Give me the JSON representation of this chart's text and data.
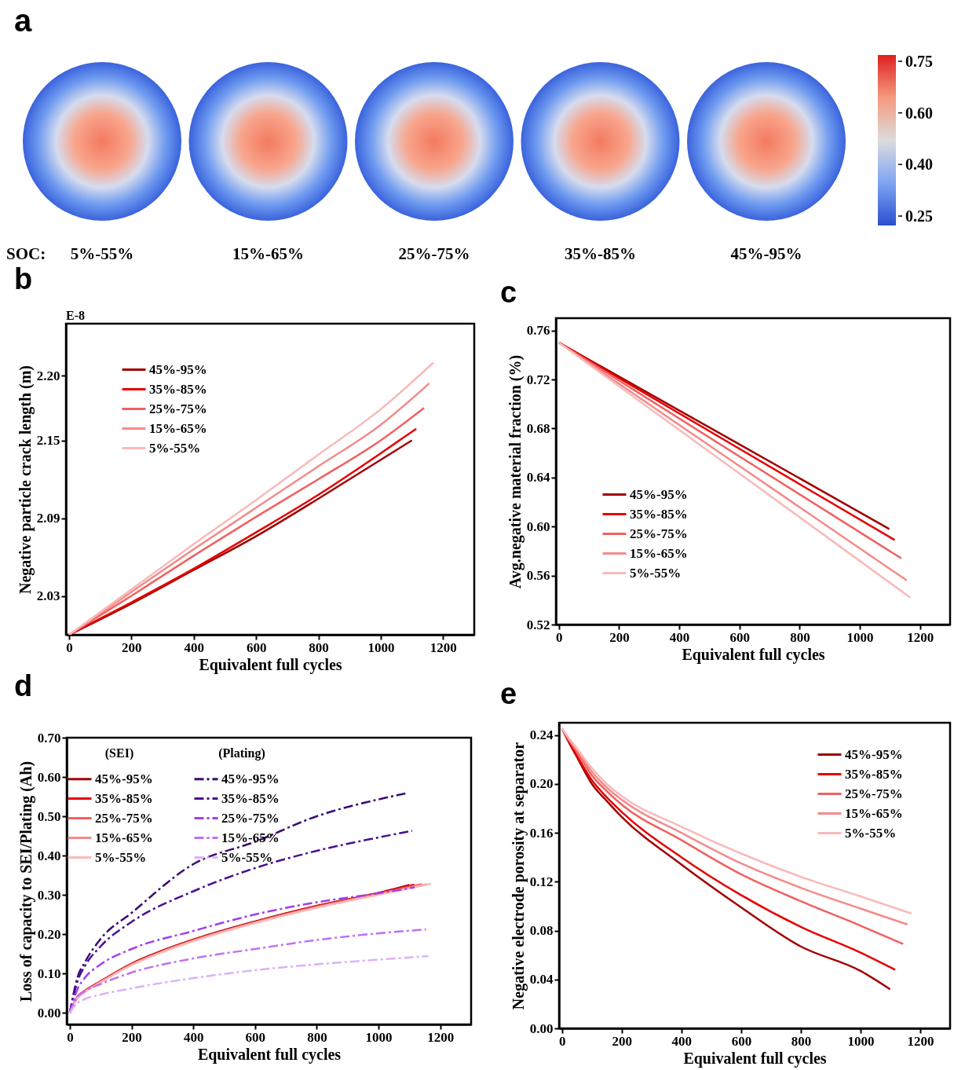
{
  "chart_data": [
    {
      "type": "other",
      "title": "a",
      "xlabel": "SOC:",
      "categories": [
        "5%-55%",
        "15%-65%",
        "25%-75%",
        "35%-85%",
        "45%-95%"
      ],
      "annotations": [
        "0.75",
        "0.60",
        "0.40",
        "0.25"
      ]
    },
    {
      "type": "line",
      "title": "b",
      "xlabel": "Equivalent full cycles",
      "ylabel": "Negative particle crack length (m)",
      "annotations": [
        "E-8"
      ],
      "xlim": [
        -10,
        1300
      ],
      "ylim": [
        2.0,
        2.24
      ],
      "xticks": [
        0,
        200,
        400,
        600,
        800,
        1000,
        1200
      ],
      "yticks": [
        2.03,
        2.09,
        2.15,
        {
          "value": 2.2,
          "label": "2.20"
        }
      ],
      "legend": "top left",
      "series": [
        {
          "name": "45%-95%",
          "color": "#a00000",
          "x": [
            0,
            200,
            400,
            600,
            800,
            1000,
            1100
          ],
          "values": [
            2.0,
            2.024,
            2.05,
            2.076,
            2.105,
            2.135,
            2.15
          ]
        },
        {
          "name": "35%-85%",
          "color": "#e60000",
          "x": [
            0,
            200,
            400,
            600,
            800,
            1000,
            1114
          ],
          "values": [
            2.0,
            2.025,
            2.051,
            2.079,
            2.108,
            2.14,
            2.159
          ]
        },
        {
          "name": "25%-75%",
          "color": "#f26060",
          "x": [
            0,
            200,
            400,
            600,
            800,
            1000,
            1139
          ],
          "values": [
            2.0,
            2.03,
            2.061,
            2.091,
            2.12,
            2.15,
            2.175
          ]
        },
        {
          "name": "15%-65%",
          "color": "#f58a8a",
          "x": [
            0,
            200,
            400,
            600,
            800,
            1000,
            1156
          ],
          "values": [
            2.0,
            2.033,
            2.066,
            2.098,
            2.13,
            2.162,
            2.194
          ]
        },
        {
          "name": "5%-55%",
          "color": "#f9b9b9",
          "x": [
            0,
            200,
            400,
            600,
            800,
            1000,
            1169
          ],
          "values": [
            2.0,
            2.035,
            2.07,
            2.104,
            2.139,
            2.174,
            2.21
          ]
        }
      ]
    },
    {
      "type": "line",
      "title": "c",
      "xlabel": "Equivalent full cycles",
      "ylabel": "Avg.negative material fraction (%)",
      "xlim": [
        -10,
        1300
      ],
      "ylim": [
        0.52,
        0.77
      ],
      "xticks": [
        0,
        200,
        400,
        600,
        800,
        1000,
        1200
      ],
      "yticks": [
        0.52,
        0.56,
        {
          "value": 0.6,
          "label": "0.60"
        },
        0.64,
        0.68,
        0.72,
        0.76
      ],
      "legend": "bottom left",
      "series": [
        {
          "name": "45%-95%",
          "color": "#a00000",
          "x": [
            0,
            600,
            1098
          ],
          "values": [
            0.75,
            0.667,
            0.598
          ]
        },
        {
          "name": "35%-85%",
          "color": "#e60000",
          "x": [
            0,
            600,
            1116
          ],
          "values": [
            0.75,
            0.6634,
            0.589
          ]
        },
        {
          "name": "25%-75%",
          "color": "#f26060",
          "x": [
            0,
            600,
            1138
          ],
          "values": [
            0.75,
            0.6572,
            0.574
          ]
        },
        {
          "name": "15%-65%",
          "color": "#f58a8a",
          "x": [
            0,
            600,
            1156
          ],
          "values": [
            0.75,
            0.6493,
            0.556
          ]
        },
        {
          "name": "5%-55%",
          "color": "#f9b9b9",
          "x": [
            0,
            600,
            1168
          ],
          "values": [
            0.75,
            0.6432,
            0.542
          ]
        }
      ]
    },
    {
      "type": "line",
      "title": "d",
      "xlabel": "Equivalent full cycles",
      "ylabel": "Loss of capacity to SEI/Plating (Ah)",
      "annotations": [
        "(SEI)",
        "(Plating)"
      ],
      "xlim": [
        -10,
        1300
      ],
      "ylim": [
        -0.03,
        0.7
      ],
      "xticks": [
        0,
        200,
        400,
        600,
        800,
        1000,
        1200
      ],
      "yticks": [
        {
          "value": 0,
          "label": "0.00"
        },
        {
          "value": 0.1,
          "label": "0.10"
        },
        {
          "value": 0.2,
          "label": "0.20"
        },
        {
          "value": 0.3,
          "label": "0.30"
        },
        {
          "value": 0.4,
          "label": "0.40"
        },
        {
          "value": 0.5,
          "label": "0.50"
        },
        {
          "value": 0.6,
          "label": "0.60"
        },
        {
          "value": 0.7,
          "label": "0.70"
        }
      ],
      "legend": "top left",
      "series": [
        {
          "name": "45%-95%",
          "color": "#a00000",
          "line_style": "solid",
          "x": [
            0,
            25,
            50,
            100,
            200,
            300,
            400,
            600,
            800,
            1000,
            1100
          ],
          "values": [
            0,
            0.04,
            0.056,
            0.08,
            0.125,
            0.158,
            0.186,
            0.232,
            0.272,
            0.305,
            0.325
          ]
        },
        {
          "name": "35%-85%",
          "color": "#e60000",
          "line_style": "solid",
          "x": [
            0,
            25,
            50,
            100,
            200,
            300,
            400,
            600,
            800,
            1000,
            1116
          ],
          "values": [
            0,
            0.04,
            0.056,
            0.08,
            0.124,
            0.157,
            0.185,
            0.231,
            0.271,
            0.304,
            0.326
          ]
        },
        {
          "name": "25%-75%",
          "color": "#f26060",
          "line_style": "solid",
          "x": [
            0,
            25,
            50,
            100,
            200,
            300,
            400,
            600,
            800,
            1000,
            1140
          ],
          "values": [
            0,
            0.039,
            0.055,
            0.079,
            0.123,
            0.156,
            0.184,
            0.23,
            0.27,
            0.303,
            0.327
          ]
        },
        {
          "name": "15%-65%",
          "color": "#f58a8a",
          "line_style": "solid",
          "x": [
            0,
            25,
            50,
            100,
            200,
            300,
            400,
            600,
            800,
            1000,
            1156
          ],
          "values": [
            0,
            0.038,
            0.054,
            0.078,
            0.122,
            0.155,
            0.183,
            0.229,
            0.268,
            0.301,
            0.327
          ]
        },
        {
          "name": "5%-55%",
          "color": "#f9b9b9",
          "line_style": "solid",
          "x": [
            0,
            25,
            50,
            100,
            200,
            300,
            400,
            600,
            800,
            1000,
            1170
          ],
          "values": [
            0,
            0.037,
            0.053,
            0.077,
            0.121,
            0.154,
            0.182,
            0.228,
            0.267,
            0.3,
            0.328
          ]
        },
        {
          "name": "45%-95%",
          "color": "#3a0a70",
          "line_style": "dashdot",
          "x": [
            0,
            25,
            50,
            100,
            200,
            400,
            600,
            800,
            1000,
            1087
          ],
          "values": [
            0,
            0.09,
            0.13,
            0.188,
            0.254,
            0.378,
            0.435,
            0.5,
            0.543,
            0.558
          ]
        },
        {
          "name": "35%-85%",
          "color": "#4b1090",
          "line_style": "dashdot",
          "x": [
            0,
            25,
            50,
            100,
            200,
            400,
            600,
            800,
            1000,
            1109
          ],
          "values": [
            0,
            0.08,
            0.12,
            0.169,
            0.231,
            0.309,
            0.368,
            0.412,
            0.446,
            0.463
          ]
        },
        {
          "name": "25%-75%",
          "color": "#a03ef0",
          "line_style": "dashdot",
          "x": [
            0,
            25,
            50,
            100,
            200,
            400,
            600,
            800,
            1000,
            1117
          ],
          "values": [
            0,
            0.06,
            0.09,
            0.123,
            0.162,
            0.208,
            0.25,
            0.281,
            0.304,
            0.319
          ]
        },
        {
          "name": "15%-65%",
          "color": "#c070f5",
          "line_style": "dashdot",
          "x": [
            0,
            25,
            50,
            100,
            200,
            400,
            600,
            800,
            1000,
            1154
          ],
          "values": [
            0,
            0.04,
            0.055,
            0.073,
            0.102,
            0.138,
            0.162,
            0.185,
            0.202,
            0.212
          ]
        },
        {
          "name": "5%-55%",
          "color": "#ddb0f8",
          "line_style": "dashdot",
          "x": [
            0,
            25,
            50,
            100,
            200,
            400,
            600,
            800,
            1000,
            1161
          ],
          "values": [
            0,
            0.025,
            0.035,
            0.046,
            0.062,
            0.088,
            0.108,
            0.123,
            0.135,
            0.144
          ]
        }
      ]
    },
    {
      "type": "line",
      "title": "e",
      "xlabel": "Equivalent full cycles",
      "ylabel": "Negative electrode porosity at separator",
      "xlim": [
        -10,
        1300
      ],
      "ylim": [
        0,
        0.25
      ],
      "xticks": [
        0,
        200,
        400,
        600,
        800,
        1000,
        1200
      ],
      "yticks": [
        {
          "value": 0,
          "label": "0.00"
        },
        0.04,
        0.08,
        0.12,
        0.16,
        {
          "value": 0.2,
          "label": "0.20"
        },
        0.24
      ],
      "legend": "top right",
      "series": [
        {
          "name": "45%-95%",
          "color": "#a00000",
          "x": [
            0,
            25,
            50,
            100,
            150,
            200,
            400,
            600,
            800,
            1000,
            1099
          ],
          "values": [
            0.245,
            0.233,
            0.222,
            0.2,
            0.186,
            0.173,
            0.134,
            0.099,
            0.067,
            0.047,
            0.032
          ]
        },
        {
          "name": "35%-85%",
          "color": "#e60000",
          "x": [
            0,
            25,
            50,
            100,
            150,
            200,
            400,
            600,
            800,
            1000,
            1116
          ],
          "values": [
            0.245,
            0.234,
            0.223,
            0.203,
            0.189,
            0.177,
            0.14,
            0.109,
            0.083,
            0.062,
            0.048
          ]
        },
        {
          "name": "25%-75%",
          "color": "#f26060",
          "x": [
            0,
            25,
            50,
            100,
            150,
            200,
            400,
            600,
            800,
            1000,
            1143
          ],
          "values": [
            0.245,
            0.235,
            0.226,
            0.207,
            0.194,
            0.183,
            0.154,
            0.126,
            0.104,
            0.084,
            0.069
          ]
        },
        {
          "name": "15%-65%",
          "color": "#f58a8a",
          "x": [
            0,
            25,
            50,
            100,
            150,
            200,
            400,
            600,
            800,
            1000,
            1157
          ],
          "values": [
            0.245,
            0.236,
            0.228,
            0.21,
            0.197,
            0.187,
            0.16,
            0.135,
            0.115,
            0.098,
            0.085
          ]
        },
        {
          "name": "5%-55%",
          "color": "#f9b9b9",
          "x": [
            0,
            25,
            50,
            100,
            150,
            200,
            400,
            600,
            800,
            1000,
            1170
          ],
          "values": [
            0.245,
            0.237,
            0.229,
            0.213,
            0.2,
            0.19,
            0.165,
            0.143,
            0.124,
            0.108,
            0.094
          ]
        }
      ]
    }
  ]
}
